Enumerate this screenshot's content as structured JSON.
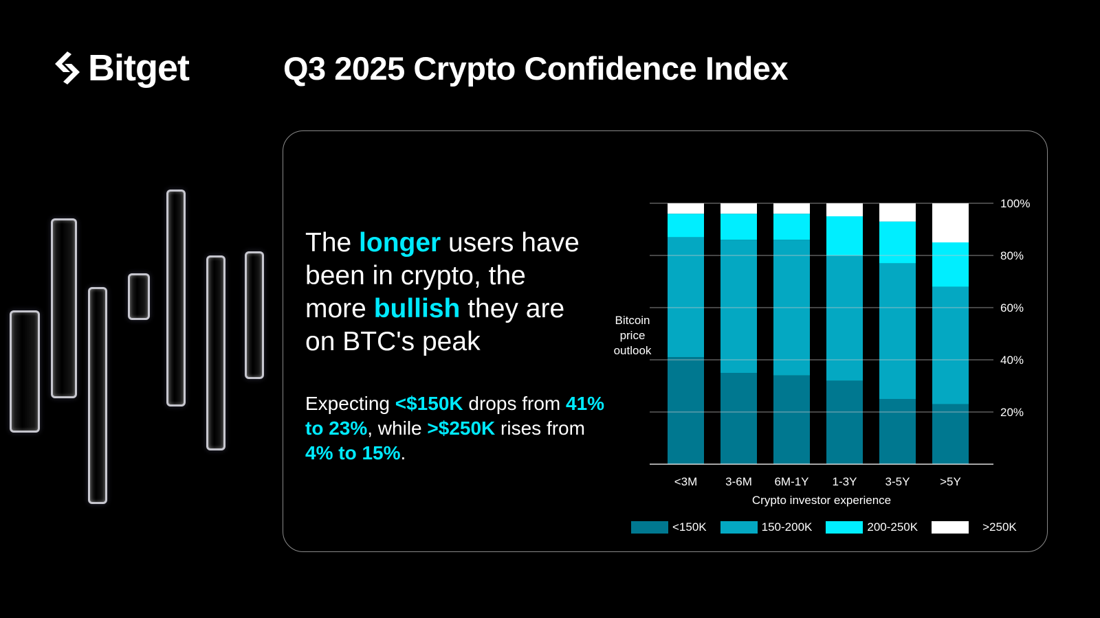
{
  "brand": {
    "name": "Bitget"
  },
  "title": "Q3 2025 Crypto Confidence Index",
  "headline": {
    "p1": "The ",
    "h1": "longer",
    "p2": " users have been in crypto, the more ",
    "h2": "bullish",
    "p3": " they are on BTC's peak"
  },
  "paragraph": {
    "p1": "Expecting ",
    "h1": "<$150K",
    "p2": " drops from ",
    "h2": "41% to 23%",
    "p3": ", while ",
    "h3": ">$250K",
    "p4": " rises from ",
    "h4": "4% to 15%",
    "p5": "."
  },
  "colors": {
    "accent": "#00eaff",
    "background": "#000000"
  },
  "chart_data": {
    "type": "bar",
    "stacked": true,
    "normalized": true,
    "categories": [
      "<3M",
      "3-6M",
      "6M-1Y",
      "1-3Y",
      "3-5Y",
      ">5Y"
    ],
    "series": [
      {
        "name": "<150K",
        "color": "#007890",
        "values": [
          41,
          35,
          34,
          32,
          25,
          23
        ]
      },
      {
        "name": "150-200K",
        "color": "#04a8c2",
        "values": [
          46,
          51,
          52,
          48,
          52,
          45
        ]
      },
      {
        "name": "200-250K",
        "color": "#00eeff",
        "values": [
          9,
          10,
          10,
          15,
          16,
          17
        ]
      },
      {
        "name": ">250K",
        "color": "#ffffff",
        "values": [
          4,
          4,
          4,
          5,
          7,
          15
        ]
      }
    ],
    "xlabel": "Crypto investor experience",
    "ylabel": "Bitcoin price outlook",
    "ylabel_lines": [
      "Bitcoin",
      "price",
      "outlook"
    ],
    "yticks": [
      "20%",
      "40%",
      "60%",
      "80%",
      "100%"
    ],
    "ylim": [
      0,
      100
    ],
    "grid": true,
    "legend": "bottom"
  }
}
